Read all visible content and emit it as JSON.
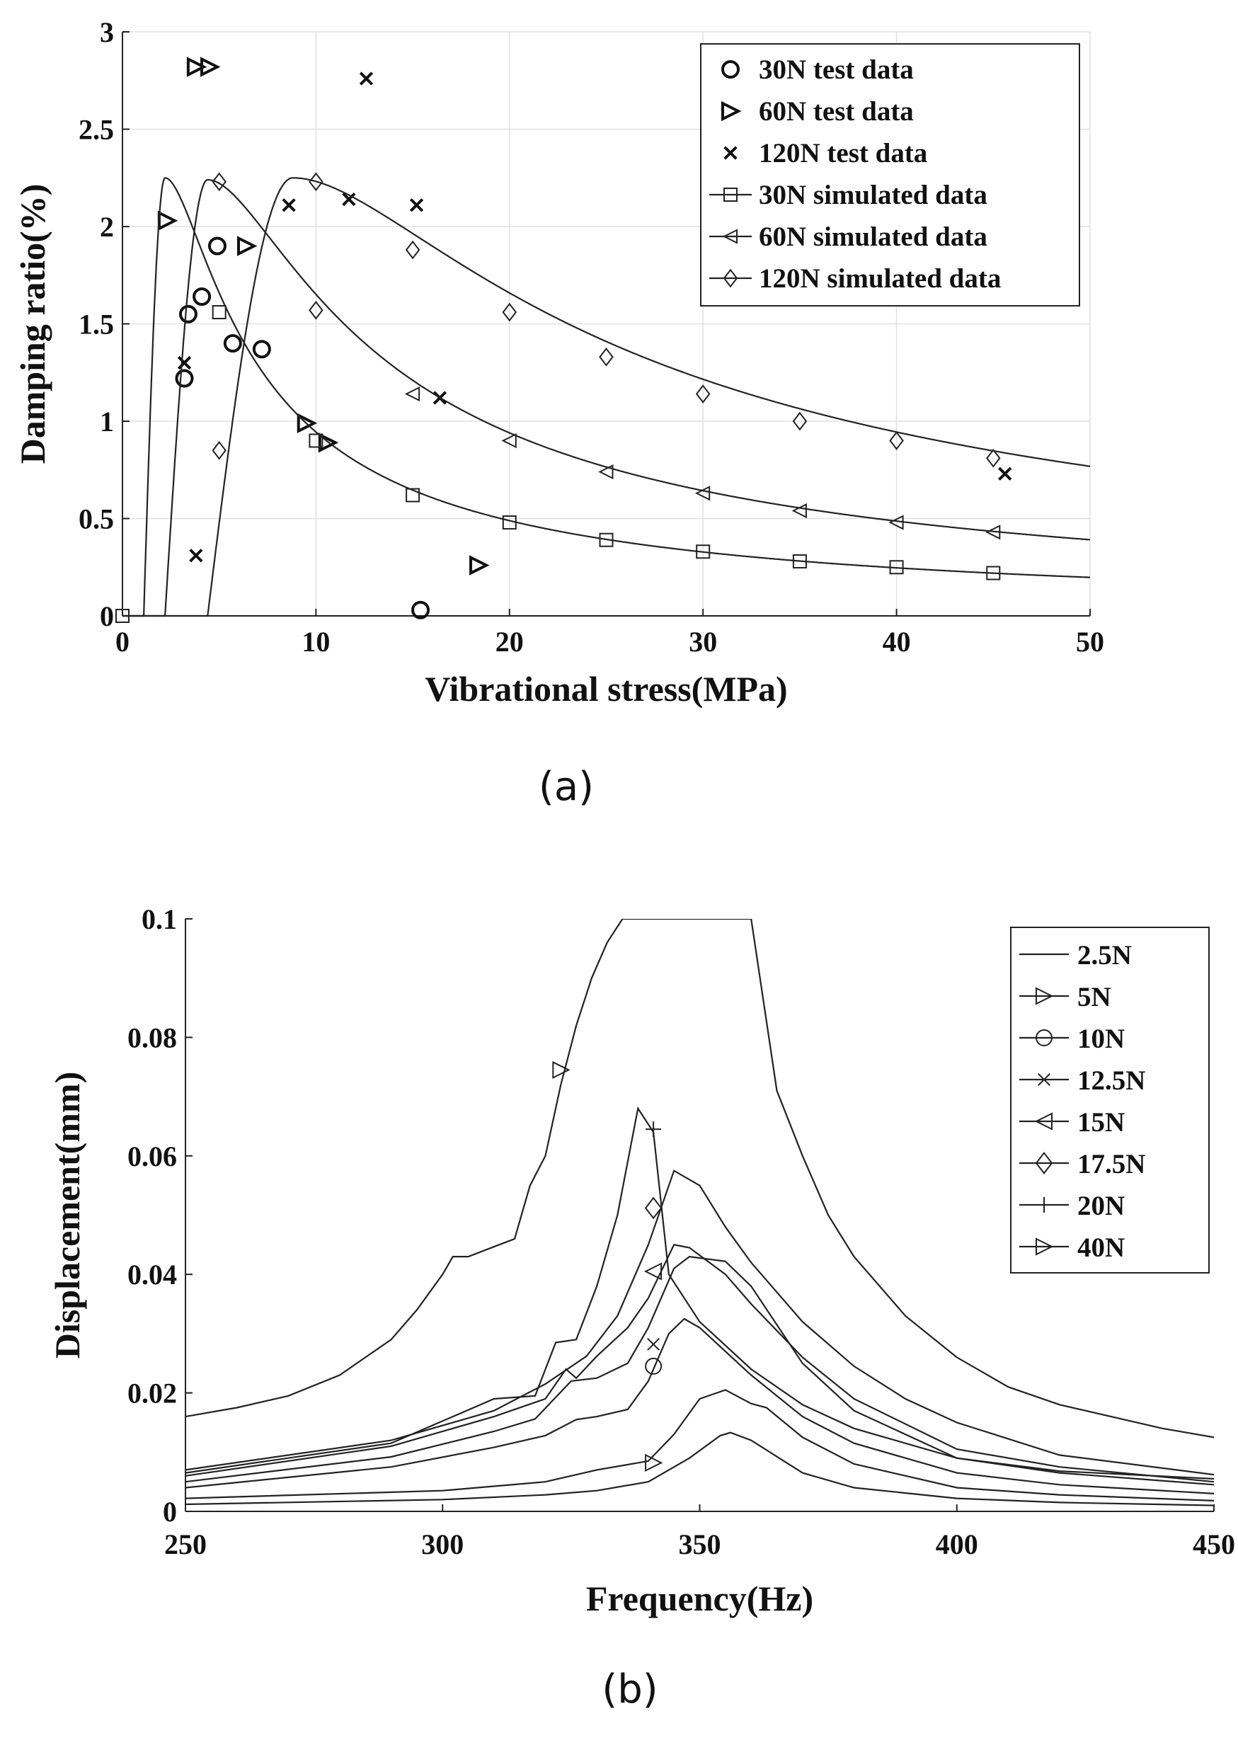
{
  "chart_data": [
    {
      "id": "a",
      "type": "scatter",
      "panel_label": "(a)",
      "xlabel": "Vibrational stress(MPa)",
      "ylabel": "Damping ratio(%)",
      "xlim": [
        0,
        50
      ],
      "ylim": [
        0,
        3
      ],
      "xticks": [
        0,
        10,
        20,
        30,
        40,
        50
      ],
      "yticks": [
        0,
        0.5,
        1,
        1.5,
        2,
        2.5,
        3
      ],
      "ytick_labels": [
        "0",
        "0.5",
        "1",
        "1.5",
        "2",
        "2.5",
        "3"
      ],
      "grid": true,
      "legend_position": "top-right",
      "series": [
        {
          "name": "30N test data",
          "kind": "points",
          "marker": "circle",
          "points": [
            [
              3.2,
              1.22
            ],
            [
              3.4,
              1.55
            ],
            [
              4.1,
              1.64
            ],
            [
              4.9,
              1.9
            ],
            [
              5.7,
              1.4
            ],
            [
              7.2,
              1.37
            ],
            [
              15.4,
              0.03
            ]
          ]
        },
        {
          "name": "60N test data",
          "kind": "points",
          "marker": "triangle-right",
          "points": [
            [
              3.8,
              2.82
            ],
            [
              4.5,
              2.82
            ],
            [
              2.3,
              2.03
            ],
            [
              6.4,
              1.9
            ],
            [
              9.5,
              0.99
            ],
            [
              10.6,
              0.89
            ],
            [
              18.4,
              0.26
            ]
          ]
        },
        {
          "name": "120N test data",
          "kind": "points",
          "marker": "x",
          "points": [
            [
              3.2,
              1.3
            ],
            [
              3.8,
              0.31
            ],
            [
              8.6,
              2.11
            ],
            [
              11.7,
              2.14
            ],
            [
              12.6,
              2.76
            ],
            [
              15.2,
              2.11
            ],
            [
              16.4,
              1.12
            ],
            [
              45.6,
              0.73
            ]
          ]
        },
        {
          "name": "30N simulated data",
          "kind": "line",
          "marker": "square",
          "curve": {
            "s0": 1.1,
            "peak_x": 2.2,
            "peak_y": 2.25
          },
          "markers": [
            [
              0,
              0
            ],
            [
              5,
              1.56
            ],
            [
              10,
              0.9
            ],
            [
              15,
              0.62
            ],
            [
              20,
              0.48
            ],
            [
              25,
              0.39
            ],
            [
              30,
              0.33
            ],
            [
              35,
              0.28
            ],
            [
              40,
              0.25
            ],
            [
              45,
              0.22
            ]
          ]
        },
        {
          "name": "60N simulated data",
          "kind": "line",
          "marker": "triangle-left",
          "curve": {
            "s0": 2.2,
            "peak_x": 4.4,
            "peak_y": 2.24
          },
          "markers": [
            [
              15,
              1.14
            ],
            [
              20,
              0.9
            ],
            [
              25,
              0.74
            ],
            [
              30,
              0.63
            ],
            [
              35,
              0.54
            ],
            [
              40,
              0.48
            ],
            [
              45,
              0.43
            ]
          ]
        },
        {
          "name": "120N simulated data",
          "kind": "line",
          "marker": "diamond",
          "curve": {
            "s0": 4.4,
            "peak_x": 8.8,
            "peak_y": 2.25
          },
          "markers": [
            [
              5,
              0.85
            ],
            [
              5,
              2.23
            ],
            [
              10,
              2.23
            ],
            [
              10,
              1.57
            ],
            [
              15,
              1.88
            ],
            [
              20,
              1.56
            ],
            [
              25,
              1.33
            ],
            [
              30,
              1.14
            ],
            [
              35,
              1.0
            ],
            [
              40,
              0.9
            ],
            [
              45,
              0.81
            ]
          ]
        }
      ]
    },
    {
      "id": "b",
      "type": "line",
      "panel_label": "(b)",
      "xlabel": "Frequency(Hz)",
      "ylabel": "Displacement(mm)",
      "xlim": [
        250,
        450
      ],
      "ylim": [
        0,
        0.1
      ],
      "xticks": [
        250,
        300,
        350,
        400,
        450
      ],
      "yticks": [
        0,
        0.02,
        0.04,
        0.06,
        0.08,
        0.1
      ],
      "ytick_labels": [
        "0",
        "0.02",
        "0.04",
        "0.06",
        "0.08",
        "0.1"
      ],
      "grid": false,
      "legend_position": "top-right",
      "series": [
        {
          "name": "2.5N",
          "marker": "none",
          "x": [
            250,
            260,
            270,
            280,
            290,
            295,
            300,
            302,
            305,
            308,
            311,
            314,
            317,
            320,
            323,
            326,
            329,
            332,
            335,
            337,
            360,
            365,
            370,
            375,
            380,
            390,
            400,
            410,
            420,
            430,
            440,
            450
          ],
          "y": [
            0.016,
            0.0175,
            0.0195,
            0.023,
            0.029,
            0.034,
            0.04,
            0.043,
            0.043,
            0.044,
            0.045,
            0.046,
            0.055,
            0.06,
            0.072,
            0.082,
            0.09,
            0.096,
            0.1,
            0.1,
            0.1,
            0.071,
            0.06,
            0.05,
            0.043,
            0.033,
            0.026,
            0.021,
            0.018,
            0.016,
            0.014,
            0.0125
          ]
        },
        {
          "name": "5N",
          "marker": "triangle-right",
          "markers": [
            [
              323,
              0.0745
            ]
          ],
          "x": [
            250,
            300,
            320,
            330,
            340,
            348,
            354,
            356,
            360,
            370,
            380,
            400,
            420,
            450
          ],
          "y": [
            0.0012,
            0.002,
            0.0028,
            0.0035,
            0.005,
            0.009,
            0.0128,
            0.0133,
            0.012,
            0.0065,
            0.004,
            0.0022,
            0.0015,
            0.001
          ]
        },
        {
          "name": "10N",
          "marker": "circle",
          "markers": [
            [
              341,
              0.0245
            ]
          ],
          "x": [
            250,
            300,
            320,
            330,
            340,
            345,
            350,
            355,
            360,
            363,
            370,
            380,
            400,
            420,
            450
          ],
          "y": [
            0.0022,
            0.0035,
            0.005,
            0.007,
            0.0085,
            0.013,
            0.019,
            0.0205,
            0.0182,
            0.0175,
            0.0125,
            0.008,
            0.004,
            0.0028,
            0.0018
          ]
        },
        {
          "name": "12.5N",
          "marker": "x",
          "markers": [
            [
              341,
              0.0282
            ]
          ],
          "x": [
            250,
            290,
            310,
            320,
            326,
            330,
            336,
            340,
            344,
            347,
            350,
            360,
            370,
            380,
            400,
            420,
            450
          ],
          "y": [
            0.004,
            0.0075,
            0.0108,
            0.0128,
            0.0155,
            0.016,
            0.0172,
            0.022,
            0.03,
            0.0325,
            0.031,
            0.023,
            0.016,
            0.0115,
            0.0065,
            0.0045,
            0.003
          ]
        },
        {
          "name": "15N",
          "marker": "triangle-left",
          "markers": [
            [
              341,
              0.0405
            ]
          ],
          "x": [
            250,
            290,
            310,
            318,
            325,
            330,
            336,
            340,
            345,
            348,
            355,
            360,
            370,
            380,
            400,
            420,
            450
          ],
          "y": [
            0.005,
            0.0092,
            0.0135,
            0.0156,
            0.022,
            0.0225,
            0.025,
            0.031,
            0.041,
            0.043,
            0.0422,
            0.038,
            0.025,
            0.017,
            0.009,
            0.0065,
            0.0045
          ]
        },
        {
          "name": "17.5N",
          "marker": "diamond",
          "markers": [
            [
              341,
              0.0512
            ]
          ],
          "x": [
            250,
            290,
            310,
            320,
            324,
            326,
            330,
            336,
            340,
            345,
            348,
            355,
            360,
            370,
            380,
            400,
            420,
            450
          ],
          "y": [
            0.006,
            0.011,
            0.016,
            0.019,
            0.024,
            0.0225,
            0.0262,
            0.031,
            0.036,
            0.045,
            0.0445,
            0.04,
            0.035,
            0.026,
            0.019,
            0.0105,
            0.0075,
            0.005
          ]
        },
        {
          "name": "20N",
          "marker": "plus",
          "markers": [
            [
              341,
              0.0645
            ]
          ],
          "x": [
            250,
            290,
            310,
            318,
            322,
            326,
            330,
            334,
            338,
            341,
            344,
            350,
            360,
            370,
            380,
            400,
            420,
            450
          ],
          "y": [
            0.0065,
            0.0115,
            0.019,
            0.0195,
            0.0285,
            0.029,
            0.038,
            0.05,
            0.068,
            0.064,
            0.04,
            0.032,
            0.024,
            0.018,
            0.014,
            0.009,
            0.0068,
            0.0055
          ]
        },
        {
          "name": "40N",
          "marker": "triangle-right",
          "markers": [
            [
              341,
              0.0082
            ]
          ],
          "x": [
            250,
            290,
            310,
            320,
            328,
            334,
            340,
            345,
            350,
            355,
            360,
            370,
            380,
            390,
            400,
            420,
            450
          ],
          "y": [
            0.007,
            0.012,
            0.017,
            0.0215,
            0.0262,
            0.033,
            0.045,
            0.0575,
            0.055,
            0.048,
            0.042,
            0.032,
            0.0245,
            0.019,
            0.015,
            0.0095,
            0.0062
          ]
        }
      ]
    }
  ]
}
